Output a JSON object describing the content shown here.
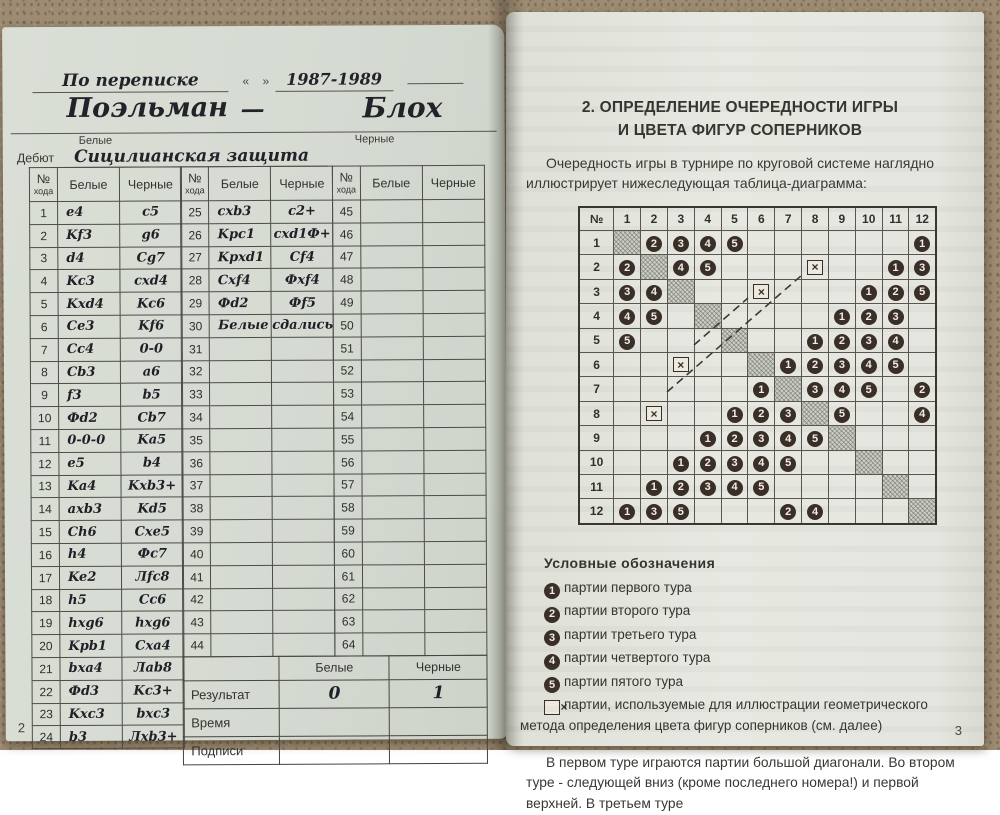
{
  "colors": {
    "background": "#9d8b72",
    "paper_left": "#d5dbd2",
    "paper_right": "#e6e7e0",
    "ink_print": "#373733",
    "ink_handwriting": "#22222a",
    "circle_fill": "#3a2f28"
  },
  "left_page": {
    "page_number": "2",
    "form": {
      "line1_label": "По переписке",
      "quote_marks": "«    »",
      "year": "1987-1989",
      "white_name": "Поэльман",
      "dash": "—",
      "black_name": "Блох",
      "white_label": "Белые",
      "black_label": "Черные",
      "debut_label": "Дебют",
      "debut_value": "Сицилианская защита"
    },
    "table": {
      "header": {
        "no": "№",
        "no_sub": "хода",
        "white": "Белые",
        "black": "Черные"
      },
      "group1": [
        [
          "1",
          "e4",
          "c5"
        ],
        [
          "2",
          "Kf3",
          "g6"
        ],
        [
          "3",
          "d4",
          "Cg7"
        ],
        [
          "4",
          "Kc3",
          "cxd4"
        ],
        [
          "5",
          "Kxd4",
          "Kc6"
        ],
        [
          "6",
          "Ce3",
          "Kf6"
        ],
        [
          "7",
          "Cc4",
          "0-0"
        ],
        [
          "8",
          "Cb3",
          "a6"
        ],
        [
          "9",
          "f3",
          "b5"
        ],
        [
          "10",
          "Фd2",
          "Cb7"
        ],
        [
          "11",
          "0-0-0",
          "Ka5"
        ],
        [
          "12",
          "e5",
          "b4"
        ],
        [
          "13",
          "Ka4",
          "Kxb3+"
        ],
        [
          "14",
          "axb3",
          "Kd5"
        ],
        [
          "15",
          "Ch6",
          "Cxe5"
        ],
        [
          "16",
          "h4",
          "Фc7"
        ],
        [
          "17",
          "Ke2",
          "Лfc8"
        ],
        [
          "18",
          "h5",
          "Cc6"
        ],
        [
          "19",
          "hxg6",
          "hxg6"
        ],
        [
          "20",
          "Kpb1",
          "Cxa4"
        ],
        [
          "21",
          "bxa4",
          "Лab8"
        ],
        [
          "22",
          "Фd3",
          "Kc3+"
        ],
        [
          "23",
          "Kxc3",
          "bxc3"
        ],
        [
          "24",
          "b3",
          "Лxb3+"
        ]
      ],
      "group2": [
        [
          "25",
          "cxb3",
          "c2+"
        ],
        [
          "26",
          "Kpc1",
          "cxd1Ф+"
        ],
        [
          "27",
          "Kpxd1",
          "Cf4"
        ],
        [
          "28",
          "Cxf4",
          "Фxf4"
        ],
        [
          "29",
          "Фd2",
          "Фf5"
        ],
        [
          "30",
          "Белые",
          "сдались"
        ],
        [
          "31",
          "",
          ""
        ],
        [
          "32",
          "",
          ""
        ],
        [
          "33",
          "",
          ""
        ],
        [
          "34",
          "",
          ""
        ],
        [
          "35",
          "",
          ""
        ],
        [
          "36",
          "",
          ""
        ],
        [
          "37",
          "",
          ""
        ],
        [
          "38",
          "",
          ""
        ],
        [
          "39",
          "",
          ""
        ],
        [
          "40",
          "",
          ""
        ],
        [
          "41",
          "",
          ""
        ],
        [
          "42",
          "",
          ""
        ],
        [
          "43",
          "",
          ""
        ],
        [
          "44",
          "",
          ""
        ]
      ],
      "group3": [
        [
          "45",
          "",
          ""
        ],
        [
          "46",
          "",
          ""
        ],
        [
          "47",
          "",
          ""
        ],
        [
          "48",
          "",
          ""
        ],
        [
          "49",
          "",
          ""
        ],
        [
          "50",
          "",
          ""
        ],
        [
          "51",
          "",
          ""
        ],
        [
          "52",
          "",
          ""
        ],
        [
          "53",
          "",
          ""
        ],
        [
          "54",
          "",
          ""
        ],
        [
          "55",
          "",
          ""
        ],
        [
          "56",
          "",
          ""
        ],
        [
          "57",
          "",
          ""
        ],
        [
          "58",
          "",
          ""
        ],
        [
          "59",
          "",
          ""
        ],
        [
          "60",
          "",
          ""
        ],
        [
          "61",
          "",
          ""
        ],
        [
          "62",
          "",
          ""
        ],
        [
          "63",
          "",
          ""
        ],
        [
          "64",
          "",
          ""
        ]
      ],
      "result_block": {
        "white_header": "Белые",
        "black_header": "Черные",
        "rows": [
          {
            "label": "Результат",
            "white": "0",
            "black": "1"
          },
          {
            "label": "Время",
            "white": "",
            "black": ""
          },
          {
            "label": "Подписи",
            "white": "",
            "black": ""
          }
        ]
      }
    }
  },
  "right_page": {
    "title_line1": "2. ОПРЕДЕЛЕНИЕ ОЧЕРЕДНОСТИ ИГРЫ",
    "title_line2": "И ЦВЕТА ФИГУР СОПЕРНИКОВ",
    "intro": "Очередность игры в турнире по круговой системе наглядно иллюстрирует нижеследующая таблица-диаграмма:",
    "diagram": {
      "corner": "№",
      "col_headers": [
        "1",
        "2",
        "3",
        "4",
        "5",
        "6",
        "7",
        "8",
        "9",
        "10",
        "11",
        "12"
      ],
      "rows": [
        {
          "h": "1",
          "cells": [
            "D",
            "2",
            "3",
            "4",
            "5",
            ".",
            ".",
            ".",
            ".",
            ".",
            ".",
            "1"
          ]
        },
        {
          "h": "2",
          "cells": [
            "2",
            "D",
            "4",
            "5",
            ".",
            ".",
            ".",
            "X",
            ".",
            ".",
            "1",
            "3"
          ]
        },
        {
          "h": "3",
          "cells": [
            "3",
            "4",
            "D",
            ".",
            ".",
            "X",
            ".",
            ".",
            ".",
            "1",
            "2",
            "5"
          ]
        },
        {
          "h": "4",
          "cells": [
            "4",
            "5",
            ".",
            "D",
            ".",
            ".",
            ".",
            ".",
            "1",
            "2",
            "3",
            "."
          ]
        },
        {
          "h": "5",
          "cells": [
            "5",
            ".",
            ".",
            ".",
            "D",
            ".",
            ".",
            "1",
            "2",
            "3",
            "4",
            "."
          ]
        },
        {
          "h": "6",
          "cells": [
            ".",
            ".",
            "X",
            ".",
            ".",
            "D",
            "1",
            "2",
            "3",
            "4",
            "5",
            "."
          ]
        },
        {
          "h": "7",
          "cells": [
            ".",
            ".",
            ".",
            ".",
            ".",
            "1",
            "D",
            "3",
            "4",
            "5",
            ".",
            "2"
          ]
        },
        {
          "h": "8",
          "cells": [
            ".",
            "X",
            ".",
            ".",
            "1",
            "2",
            "3",
            "D",
            "5",
            ".",
            ".",
            "4"
          ]
        },
        {
          "h": "9",
          "cells": [
            ".",
            ".",
            ".",
            "1",
            "2",
            "3",
            "4",
            "5",
            "D",
            ".",
            ".",
            "."
          ]
        },
        {
          "h": "10",
          "cells": [
            ".",
            ".",
            "1",
            "2",
            "3",
            "4",
            "5",
            ".",
            ".",
            "D",
            ".",
            "."
          ]
        },
        {
          "h": "11",
          "cells": [
            ".",
            "1",
            "2",
            "3",
            "4",
            "5",
            ".",
            ".",
            ".",
            ".",
            "D",
            "."
          ]
        },
        {
          "h": "12",
          "cells": [
            "1",
            "3",
            "5",
            ".",
            ".",
            ".",
            "2",
            "4",
            ".",
            ".",
            ".",
            "D"
          ]
        }
      ]
    },
    "legend": {
      "title": "Условные обозначения",
      "items": [
        {
          "icon": "1",
          "text": "партии первого тура"
        },
        {
          "icon": "2",
          "text": "партии второго тура"
        },
        {
          "icon": "3",
          "text": "партии третьего тура"
        },
        {
          "icon": "4",
          "text": "партии четвертого тура"
        },
        {
          "icon": "5",
          "text": "партии пятого тура"
        },
        {
          "icon": "X",
          "text": "партии, используемые для иллюстрации геометрического метода определения цвета фигур соперников (см. далее)"
        }
      ]
    },
    "footer_paragraph": "В первом туре играются партии большой диагонали. Во втором туре - следующей вниз (кроме последнего номера!) и первой верхней. В третьем туре",
    "page_number": "3"
  }
}
